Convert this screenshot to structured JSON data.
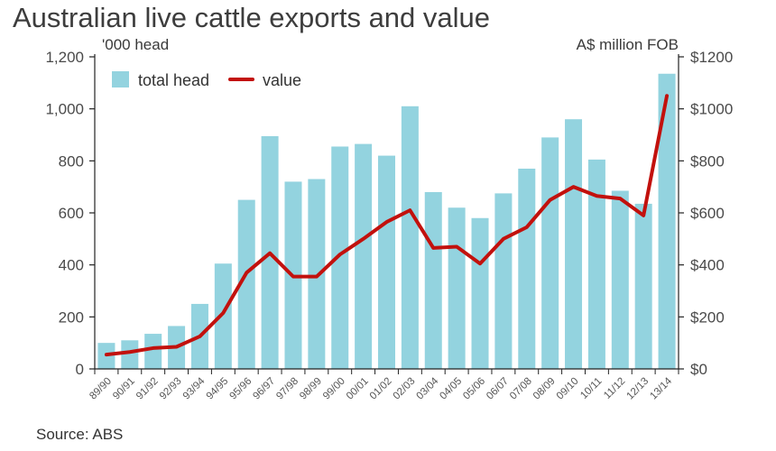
{
  "title": "Australian live cattle exports and value",
  "source": "Source: ABS",
  "colors": {
    "bar": "#93d3df",
    "line": "#c2110d",
    "axis": "#222222",
    "text": "#4a4a4a"
  },
  "chart_data": {
    "type": "bar",
    "title": "Australian live cattle exports and value",
    "left_axis": {
      "label": "'000 head",
      "ylim": [
        0,
        1200
      ],
      "ticks": [
        "0",
        "200",
        "400",
        "600",
        "800",
        "1,000",
        "1,200"
      ],
      "tick_values": [
        0,
        200,
        400,
        600,
        800,
        1000,
        1200
      ]
    },
    "right_axis": {
      "label": "A$ million FOB",
      "ylim": [
        0,
        1200
      ],
      "ticks": [
        "$0",
        "$200",
        "$400",
        "$600",
        "$800",
        "$1000",
        "$1200"
      ],
      "tick_values": [
        0,
        200,
        400,
        600,
        800,
        1000,
        1200
      ]
    },
    "categories": [
      "89/90",
      "90/91",
      "91/92",
      "92/93",
      "93/94",
      "94/95",
      "95/96",
      "96/97",
      "97/98",
      "98/99",
      "99/00",
      "00/01",
      "01/02",
      "02/03",
      "03/04",
      "04/05",
      "05/06",
      "06/07",
      "07/08",
      "08/09",
      "09/10",
      "10/11",
      "11/12",
      "12/13",
      "13/14"
    ],
    "series": [
      {
        "name": "total head",
        "type": "bar",
        "axis": "left",
        "values": [
          100,
          110,
          135,
          165,
          250,
          405,
          650,
          895,
          720,
          730,
          855,
          865,
          820,
          1010,
          680,
          620,
          580,
          675,
          770,
          890,
          960,
          805,
          685,
          635,
          1135
        ]
      },
      {
        "name": "value",
        "type": "line",
        "axis": "right",
        "values": [
          55,
          65,
          80,
          85,
          125,
          215,
          370,
          445,
          355,
          355,
          440,
          500,
          565,
          610,
          465,
          470,
          405,
          500,
          545,
          650,
          700,
          665,
          655,
          590,
          1050
        ]
      }
    ],
    "legend": "top-left",
    "grid": false
  }
}
